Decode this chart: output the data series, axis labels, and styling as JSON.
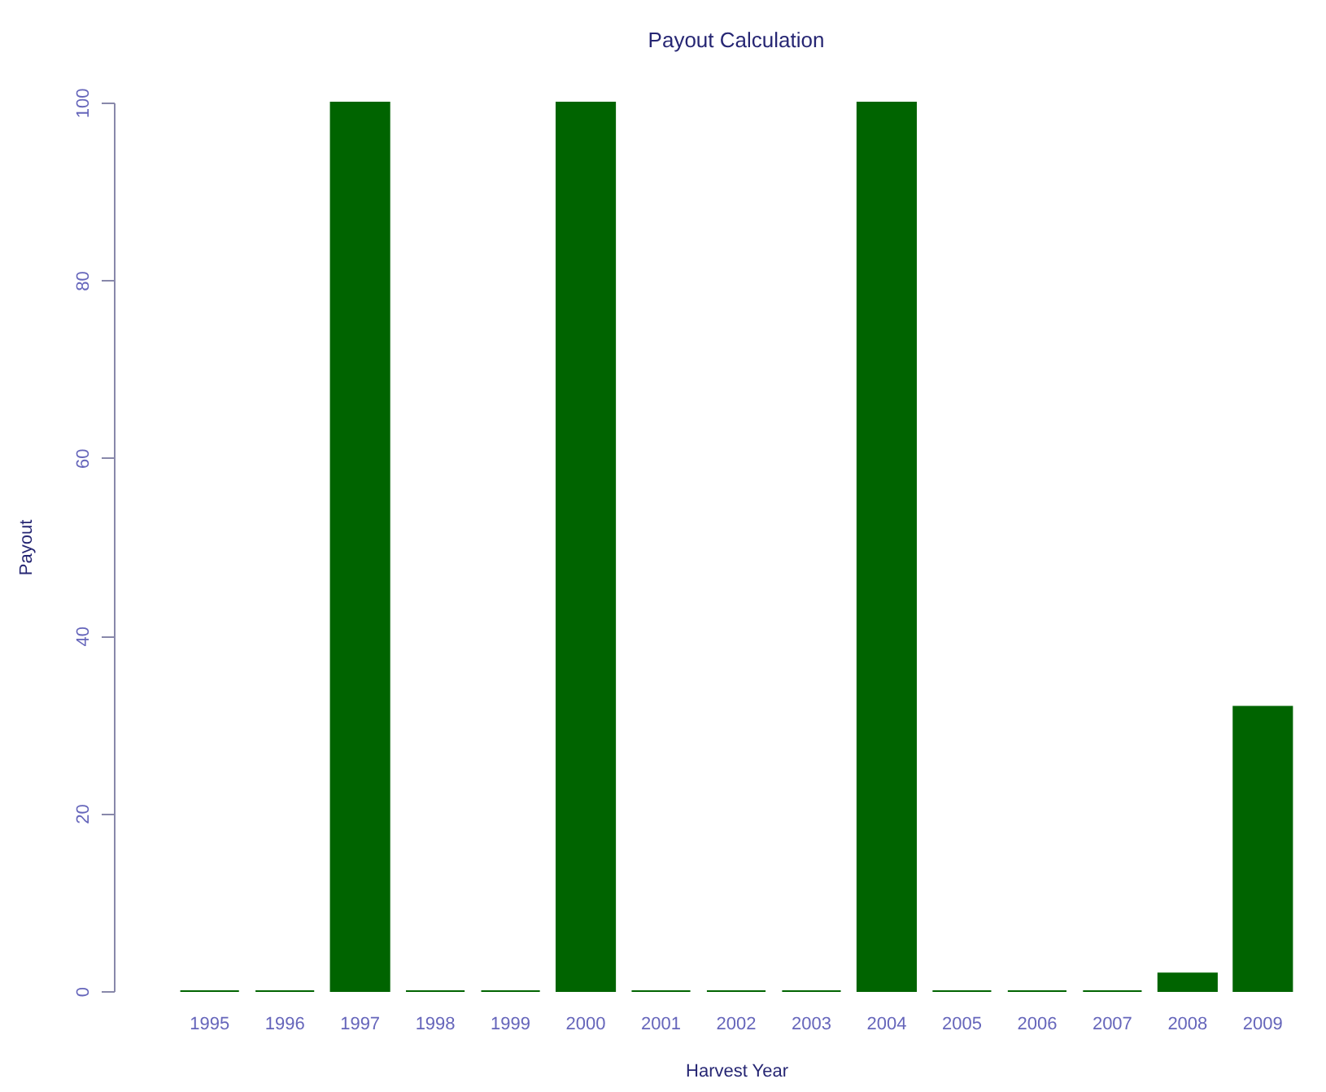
{
  "chart_data": {
    "type": "bar",
    "title": "Payout Calculation",
    "xlabel": "Harvest Year",
    "ylabel": "Payout",
    "categories": [
      "1995",
      "1996",
      "1997",
      "1998",
      "1999",
      "2000",
      "2001",
      "2002",
      "2003",
      "2004",
      "2005",
      "2006",
      "2007",
      "2008",
      "2009"
    ],
    "values": [
      0,
      0,
      100,
      0,
      0,
      100,
      0,
      0,
      0,
      100,
      0,
      0,
      0,
      2,
      32
    ],
    "color": "#006400",
    "ylim": [
      0,
      100
    ],
    "yticks": [
      0,
      20,
      40,
      60,
      80,
      100
    ],
    "grid": false
  }
}
